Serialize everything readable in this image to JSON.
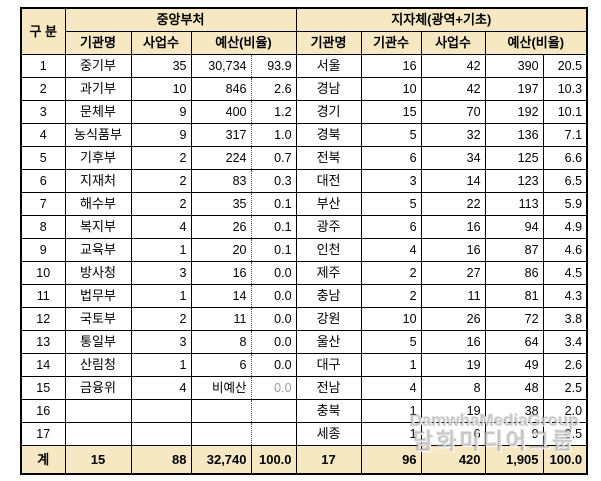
{
  "header": {
    "gubun": "구 분",
    "central_title": "중앙부처",
    "local_title": "지자체(광역+기초)",
    "central_cols": {
      "name": "기관명",
      "biz": "사업수",
      "budget_ratio": "예산(비율)"
    },
    "local_cols": {
      "name": "기관명",
      "org": "기관수",
      "biz": "사업수",
      "budget_ratio": "예산(비율)"
    }
  },
  "rows": [
    {
      "no": "1",
      "c_name": "중기부",
      "c_biz": "35",
      "c_budget": "30,734",
      "c_ratio": "93.9",
      "l_name": "서울",
      "l_org": "16",
      "l_biz": "42",
      "l_budget": "390",
      "l_ratio": "20.5"
    },
    {
      "no": "2",
      "c_name": "과기부",
      "c_biz": "10",
      "c_budget": "846",
      "c_ratio": "2.6",
      "l_name": "경남",
      "l_org": "10",
      "l_biz": "42",
      "l_budget": "197",
      "l_ratio": "10.3"
    },
    {
      "no": "3",
      "c_name": "문체부",
      "c_biz": "9",
      "c_budget": "400",
      "c_ratio": "1.2",
      "l_name": "경기",
      "l_org": "15",
      "l_biz": "70",
      "l_budget": "192",
      "l_ratio": "10.1"
    },
    {
      "no": "4",
      "c_name": "농식품부",
      "c_biz": "9",
      "c_budget": "317",
      "c_ratio": "1.0",
      "l_name": "경북",
      "l_org": "5",
      "l_biz": "32",
      "l_budget": "136",
      "l_ratio": "7.1"
    },
    {
      "no": "5",
      "c_name": "기후부",
      "c_biz": "2",
      "c_budget": "224",
      "c_ratio": "0.7",
      "l_name": "전북",
      "l_org": "6",
      "l_biz": "34",
      "l_budget": "125",
      "l_ratio": "6.6"
    },
    {
      "no": "6",
      "c_name": "지재처",
      "c_biz": "2",
      "c_budget": "83",
      "c_ratio": "0.3",
      "l_name": "대전",
      "l_org": "3",
      "l_biz": "14",
      "l_budget": "123",
      "l_ratio": "6.5"
    },
    {
      "no": "7",
      "c_name": "해수부",
      "c_biz": "2",
      "c_budget": "35",
      "c_ratio": "0.1",
      "l_name": "부산",
      "l_org": "5",
      "l_biz": "22",
      "l_budget": "113",
      "l_ratio": "5.9"
    },
    {
      "no": "8",
      "c_name": "복지부",
      "c_biz": "4",
      "c_budget": "26",
      "c_ratio": "0.1",
      "l_name": "광주",
      "l_org": "6",
      "l_biz": "16",
      "l_budget": "94",
      "l_ratio": "4.9"
    },
    {
      "no": "9",
      "c_name": "교육부",
      "c_biz": "1",
      "c_budget": "20",
      "c_ratio": "0.1",
      "l_name": "인천",
      "l_org": "4",
      "l_biz": "16",
      "l_budget": "87",
      "l_ratio": "4.6"
    },
    {
      "no": "10",
      "c_name": "방사청",
      "c_biz": "3",
      "c_budget": "16",
      "c_ratio": "0.0",
      "l_name": "제주",
      "l_org": "2",
      "l_biz": "27",
      "l_budget": "86",
      "l_ratio": "4.5"
    },
    {
      "no": "11",
      "c_name": "법무부",
      "c_biz": "1",
      "c_budget": "14",
      "c_ratio": "0.0",
      "l_name": "충남",
      "l_org": "2",
      "l_biz": "11",
      "l_budget": "81",
      "l_ratio": "4.3"
    },
    {
      "no": "12",
      "c_name": "국토부",
      "c_biz": "2",
      "c_budget": "11",
      "c_ratio": "0.0",
      "l_name": "강원",
      "l_org": "10",
      "l_biz": "26",
      "l_budget": "72",
      "l_ratio": "3.8"
    },
    {
      "no": "13",
      "c_name": "통일부",
      "c_biz": "3",
      "c_budget": "8",
      "c_ratio": "0.0",
      "l_name": "울산",
      "l_org": "5",
      "l_biz": "16",
      "l_budget": "64",
      "l_ratio": "3.4"
    },
    {
      "no": "14",
      "c_name": "산림청",
      "c_biz": "1",
      "c_budget": "6",
      "c_ratio": "0.0",
      "l_name": "대구",
      "l_org": "1",
      "l_biz": "19",
      "l_budget": "49",
      "l_ratio": "2.6"
    },
    {
      "no": "15",
      "c_name": "금융위",
      "c_biz": "4",
      "c_budget": "비예산",
      "c_ratio": "0.0",
      "l_name": "전남",
      "l_org": "4",
      "l_biz": "8",
      "l_budget": "48",
      "l_ratio": "2.5",
      "muted": [
        "c_ratio"
      ]
    },
    {
      "no": "16",
      "c_name": "",
      "c_biz": "",
      "c_budget": "",
      "c_ratio": "",
      "l_name": "충북",
      "l_org": "1",
      "l_biz": "19",
      "l_budget": "38",
      "l_ratio": "2.0"
    },
    {
      "no": "17",
      "c_name": "",
      "c_biz": "",
      "c_budget": "",
      "c_ratio": "",
      "l_name": "세종",
      "l_org": "1",
      "l_biz": "6",
      "l_budget": "9",
      "l_ratio": "0.5"
    }
  ],
  "total": {
    "no": "계",
    "c_name": "15",
    "c_biz": "88",
    "c_budget": "32,740",
    "c_ratio": "100.0",
    "l_name": "17",
    "l_org": "96",
    "l_biz": "420",
    "l_budget": "1,905",
    "l_ratio": "100.0"
  },
  "watermark": {
    "line1": "DamwhaMediaGroup",
    "line2": "담화미디어그룹"
  },
  "colors": {
    "header_bg": "#F5E8C3",
    "border": "#000000",
    "muted_text": "#9a9a9a"
  }
}
